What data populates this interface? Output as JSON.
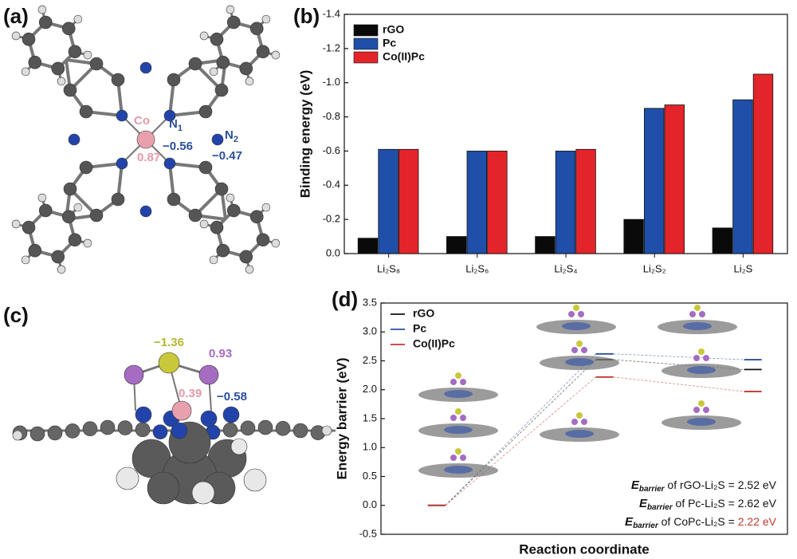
{
  "panel_a": {
    "label": "(a)",
    "atoms": {
      "co": "Co",
      "co_charge": "0.87",
      "n1": "N",
      "n1_sub": "1",
      "n1_charge": "−0.56",
      "n2": "N",
      "n2_sub": "2",
      "n2_charge": "−0.47"
    }
  },
  "panel_b": {
    "label": "(b)"
  },
  "panel_c": {
    "label": "(c)",
    "charges": {
      "s": "−1.36",
      "li": "0.93",
      "co": "0.39",
      "n": "−0.58"
    }
  },
  "panel_d": {
    "label": "(d)",
    "annotations": [
      {
        "symbol": "E",
        "subscript": "barrier",
        "text": " of rGO-Li₂S = ",
        "value": "2.52 eV",
        "value_color": "#111111"
      },
      {
        "symbol": "E",
        "subscript": "barrier",
        "text": " of Pc-Li₂S = ",
        "value": "2.62 eV",
        "value_color": "#111111"
      },
      {
        "symbol": "E",
        "subscript": "barrier",
        "text": " of CoPc-Li₂S = ",
        "value": "2.22 eV",
        "value_color": "#c0392b"
      }
    ]
  },
  "chart_data": [
    {
      "type": "bar",
      "ylabel": "Binding energy (eV)",
      "categories": [
        "Li₂S₈",
        "Li₂S₆",
        "Li₂S₄",
        "Li₂S₂",
        "Li₂S"
      ],
      "series": [
        {
          "name": "rGO",
          "color": "#0a0a0a",
          "values": [
            -0.09,
            -0.1,
            -0.1,
            -0.2,
            -0.15
          ]
        },
        {
          "name": "Pc",
          "color": "#1f4fa8",
          "values": [
            -0.61,
            -0.6,
            -0.6,
            -0.85,
            -0.9
          ]
        },
        {
          "name": "Co(II)Pc",
          "color": "#e3242b",
          "values": [
            -0.61,
            -0.6,
            -0.61,
            -0.87,
            -1.05
          ]
        }
      ],
      "ylim": [
        0,
        -1.4
      ],
      "yticks": [
        {
          "value": 0,
          "label": "0.0"
        },
        -0.2,
        -0.4,
        -0.6,
        -0.8,
        {
          "value": -1,
          "label": "-1.0"
        },
        -1.2,
        -1.4
      ],
      "legend": "upper left"
    },
    {
      "type": "energy_levels",
      "xlabel": "Reaction coordinate",
      "ylabel": "Energy barrier (eV)",
      "series": [
        {
          "name": "rGO",
          "color": "#111111",
          "values": [
            0,
            2.52,
            2.35
          ]
        },
        {
          "name": "Pc",
          "color": "#2a4f9a",
          "values": [
            0,
            2.62,
            2.52
          ]
        },
        {
          "name": "Co(II)Pc",
          "color": "#c0392b",
          "values": [
            0,
            2.22,
            1.97
          ]
        }
      ],
      "ylim": [
        -0.5,
        3.5
      ],
      "yticks": [
        -0.5,
        {
          "value": 0,
          "label": "0.0"
        },
        0.5,
        {
          "value": 1,
          "label": "1.0"
        },
        1.5,
        {
          "value": 2,
          "label": "2.0"
        },
        2.5,
        {
          "value": 3,
          "label": "3.0"
        },
        3.5
      ],
      "legend": "upper left"
    }
  ]
}
